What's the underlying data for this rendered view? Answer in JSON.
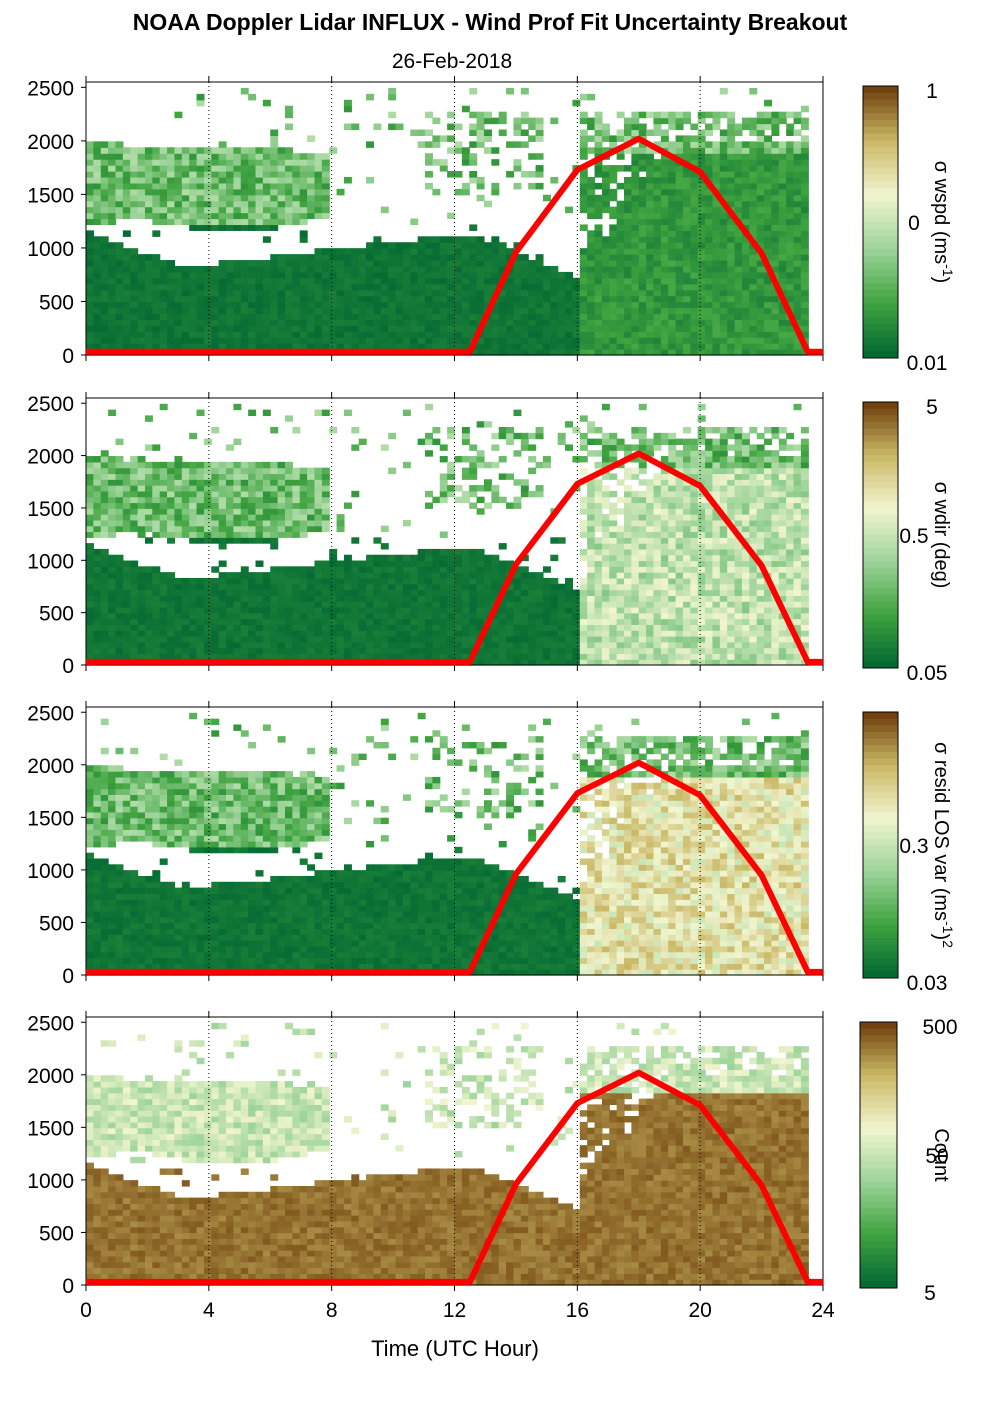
{
  "figure": {
    "title": "NOAA Doppler Lidar INFLUX - Wind Prof Fit Uncertainty Breakout",
    "date": "26-Feb-2018",
    "xlabel": "Time (UTC Hour)"
  },
  "colors": {
    "dark_green": "#006633",
    "mid_green": "#3fa33f",
    "light_green": "#9dd49a",
    "pale": "#f2f5cf",
    "olive": "#c9b764",
    "brown": "#6b3a08",
    "sun_curve": "#ff0000",
    "gridline": "#000000"
  },
  "chart_data": [
    {
      "type": "heatmap",
      "name": "wspd",
      "colorbar_label": "σ wspd (ms-1)",
      "colorbar_label_parts": [
        "σ wspd (ms",
        "-1",
        ")"
      ],
      "colorbar_ticks": [
        "1",
        "0",
        "0.01"
      ],
      "x": {
        "ticks": [
          0,
          4,
          8,
          12,
          16,
          20,
          24
        ],
        "lim": [
          0,
          24
        ],
        "grid": true
      },
      "y": {
        "ticks": [
          0,
          500,
          1000,
          1500,
          2000,
          2500
        ],
        "lim": [
          0,
          2550
        ]
      },
      "sun_curve": {
        "x": [
          0,
          12.5,
          14,
          16,
          18,
          20,
          22,
          23.5,
          24
        ],
        "y": [
          30,
          30,
          960,
          1730,
          2020,
          1710,
          950,
          30,
          30
        ]
      }
    },
    {
      "type": "heatmap",
      "name": "wdir",
      "colorbar_label": "σ wdir (deg)",
      "colorbar_label_parts": [
        "σ wdir (deg)"
      ],
      "colorbar_ticks": [
        "5",
        "0.5",
        "0.05"
      ],
      "x": {
        "ticks": [
          0,
          4,
          8,
          12,
          16,
          20,
          24
        ],
        "lim": [
          0,
          24
        ],
        "grid": true
      },
      "y": {
        "ticks": [
          0,
          500,
          1000,
          1500,
          2000,
          2500
        ],
        "lim": [
          0,
          2550
        ]
      },
      "sun_curve": {
        "x": [
          0,
          12.5,
          14,
          16,
          18,
          20,
          22,
          23.5,
          24
        ],
        "y": [
          30,
          30,
          960,
          1730,
          2020,
          1710,
          950,
          30,
          30
        ]
      }
    },
    {
      "type": "heatmap",
      "name": "resid",
      "colorbar_label": "σ resid LOS var (ms-1)2",
      "colorbar_label_parts": [
        "σ resid LOS var (ms",
        "-1",
        ")",
        "2"
      ],
      "colorbar_ticks": [
        "0.3",
        "0.03"
      ],
      "x": {
        "ticks": [
          0,
          4,
          8,
          12,
          16,
          20,
          24
        ],
        "lim": [
          0,
          24
        ],
        "grid": true
      },
      "y": {
        "ticks": [
          0,
          500,
          1000,
          1500,
          2000,
          2500
        ],
        "lim": [
          0,
          2550
        ]
      },
      "sun_curve": {
        "x": [
          0,
          12.5,
          14,
          16,
          18,
          20,
          22,
          23.5,
          24
        ],
        "y": [
          30,
          30,
          960,
          1730,
          2020,
          1710,
          950,
          30,
          30
        ]
      }
    },
    {
      "type": "heatmap",
      "name": "count",
      "colorbar_label": "Count",
      "colorbar_label_parts": [
        "Count"
      ],
      "colorbar_ticks": [
        "500",
        "50",
        "5"
      ],
      "x": {
        "ticks": [
          0,
          4,
          8,
          12,
          16,
          20,
          24
        ],
        "tick_labels": [
          "0",
          "4",
          "8",
          "12",
          "16",
          "20",
          "24"
        ],
        "lim": [
          0,
          24
        ],
        "grid": true
      },
      "y": {
        "ticks": [
          0,
          500,
          1000,
          1500,
          2000,
          2500
        ],
        "lim": [
          0,
          2550
        ]
      },
      "sun_curve": {
        "x": [
          0,
          12.5,
          14,
          16,
          18,
          20,
          22,
          23.5,
          24
        ],
        "y": [
          30,
          30,
          960,
          1730,
          2020,
          1710,
          950,
          30,
          30
        ]
      }
    }
  ]
}
